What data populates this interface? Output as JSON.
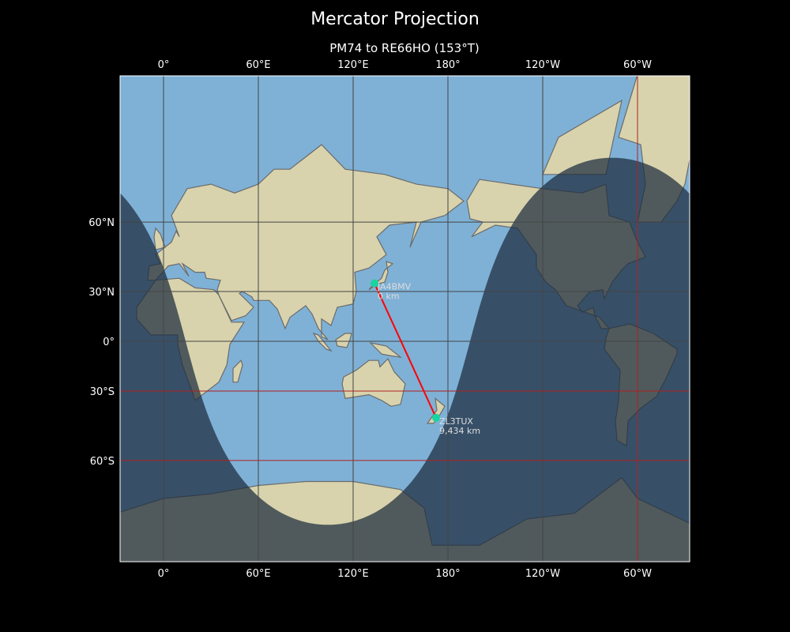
{
  "title": "Mercator Projection",
  "subtitle": "PM74 to RE66HO (153°T)",
  "map": {
    "projection": "mercator",
    "central_longitude": 153,
    "lon_range": [
      -27.5,
      333
    ],
    "lat_range": [
      -80,
      84
    ],
    "colors": {
      "ocean": "#7fb1d6",
      "land": "#d8d3ad",
      "night": "#1c2b3d",
      "path": "#ff0000",
      "marker": "#19d4a0",
      "grid": "#444444",
      "grid_highlight": "#b02020"
    },
    "subsolar_point": {
      "lat": 15,
      "lon": 104
    },
    "x_ticks": [
      {
        "lon": 0,
        "label": "0°"
      },
      {
        "lon": 60,
        "label": "60°E"
      },
      {
        "lon": 120,
        "label": "120°E"
      },
      {
        "lon": 180,
        "label": "180°"
      },
      {
        "lon": 240,
        "label": "120°W"
      },
      {
        "lon": 300,
        "label": "60°W"
      }
    ],
    "y_ticks": [
      {
        "lat": 60,
        "label": "60°N"
      },
      {
        "lat": 30,
        "label": "30°N"
      },
      {
        "lat": 0,
        "label": "0°"
      },
      {
        "lat": -30,
        "label": "30°S"
      },
      {
        "lat": -60,
        "label": "60°S"
      }
    ],
    "highlight_gridlines": {
      "lats": [
        -30,
        -60
      ],
      "lons": [
        300
      ]
    }
  },
  "stations": [
    {
      "call": "JA4BMV",
      "distance": "0 km",
      "lat": 34.4,
      "lon": 133.5
    },
    {
      "call": "ZL3TUX",
      "distance": "9,434 km",
      "lat": -43.5,
      "lon": 172.5
    }
  ]
}
